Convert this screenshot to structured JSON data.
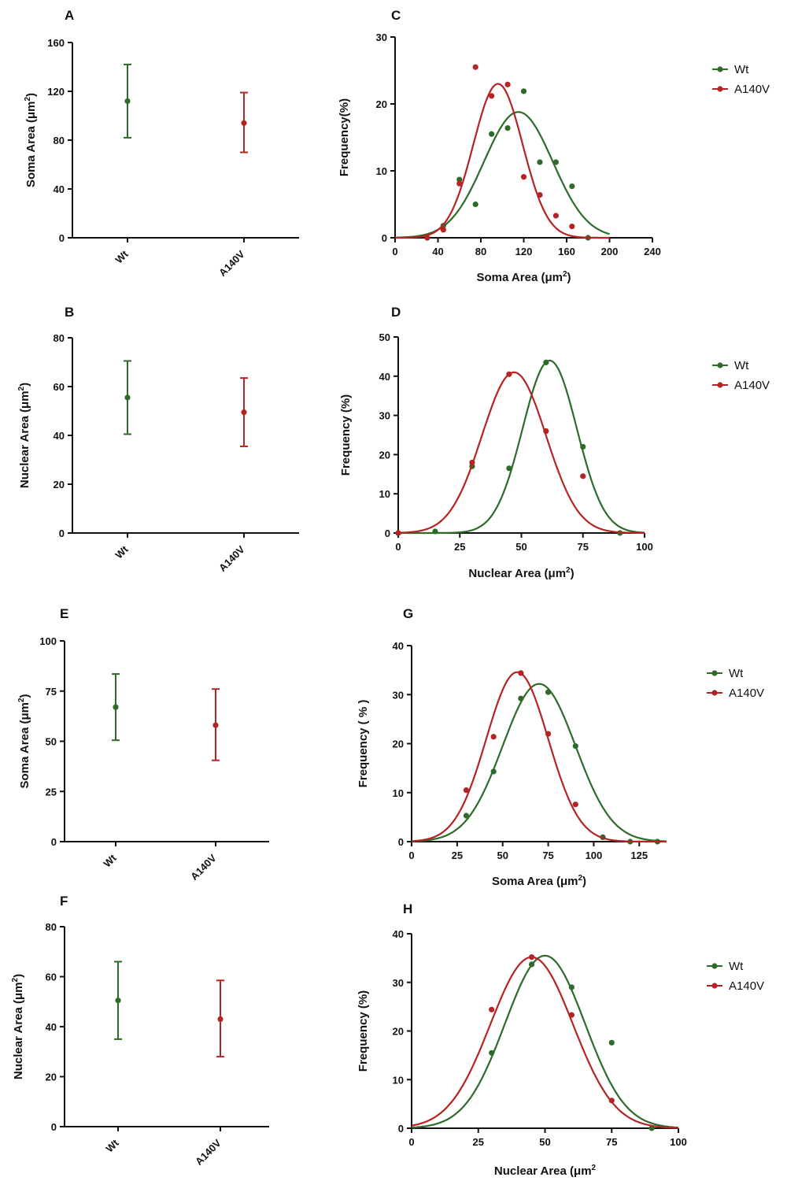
{
  "colors": {
    "wt": "#2e6b2a",
    "a140v": "#b52424",
    "axis": "#111111"
  },
  "chart_data": [
    {
      "id": "A",
      "type": "scatter",
      "panel_label": "A",
      "ylabel": "Soma Area (μm",
      "ylabel_sup": "2",
      "ylabel_tail": ")",
      "ylim": [
        0,
        160
      ],
      "yticks": [
        0,
        40,
        80,
        120,
        160
      ],
      "categories": [
        "Wt",
        "A140V"
      ],
      "series": [
        {
          "name": "Wt",
          "mean": 112,
          "low": 82,
          "high": 142,
          "color_key": "wt"
        },
        {
          "name": "A140V",
          "mean": 94,
          "low": 70,
          "high": 119,
          "color_key": "a140v"
        }
      ]
    },
    {
      "id": "B",
      "type": "scatter",
      "panel_label": "B",
      "ylabel": "Nuclear Area (μm",
      "ylabel_sup": "2",
      "ylabel_tail": ")",
      "ylim": [
        0,
        80
      ],
      "yticks": [
        0,
        20,
        40,
        60,
        80
      ],
      "categories": [
        "Wt",
        "A140V"
      ],
      "series": [
        {
          "name": "Wt",
          "mean": 55.5,
          "low": 40.5,
          "high": 70.5,
          "color_key": "wt"
        },
        {
          "name": "A140V",
          "mean": 49.5,
          "low": 35.5,
          "high": 63.5,
          "color_key": "a140v"
        }
      ]
    },
    {
      "id": "C",
      "type": "line",
      "panel_label": "C",
      "ylabel": "Frequency(%)",
      "xlabel": "Soma Area (μm",
      "xlabel_sup": "2",
      "xlabel_tail": ")",
      "xlim": [
        0,
        240
      ],
      "xticks": [
        0,
        40,
        80,
        120,
        160,
        200,
        240
      ],
      "ylim": [
        0,
        30
      ],
      "yticks": [
        0,
        10,
        20,
        30
      ],
      "legend": [
        "Wt",
        "A140V"
      ],
      "legend_position": "top-right",
      "series": [
        {
          "name": "Wt",
          "color_key": "wt",
          "points": [
            [
              30,
              0
            ],
            [
              45,
              1.8
            ],
            [
              60,
              8.7
            ],
            [
              75,
              5
            ],
            [
              90,
              15.5
            ],
            [
              105,
              16.4
            ],
            [
              120,
              21.9
            ],
            [
              135,
              11.3
            ],
            [
              150,
              11.3
            ],
            [
              165,
              7.7
            ],
            [
              180,
              0
            ]
          ],
          "curve": {
            "amp": 18.8,
            "mu": 115,
            "sigma": 32,
            "xmin": 0,
            "xmax": 200
          }
        },
        {
          "name": "A140V",
          "color_key": "a140v",
          "points": [
            [
              30,
              0
            ],
            [
              45,
              1.2
            ],
            [
              60,
              8.1
            ],
            [
              75,
              25.5
            ],
            [
              90,
              21.2
            ],
            [
              105,
              22.9
            ],
            [
              120,
              9.1
            ],
            [
              135,
              6.4
            ],
            [
              150,
              3.3
            ],
            [
              165,
              1.7
            ]
          ],
          "curve": {
            "amp": 23,
            "mu": 96,
            "sigma": 23,
            "xmin": 0,
            "xmax": 200
          }
        }
      ]
    },
    {
      "id": "D",
      "type": "line",
      "panel_label": "D",
      "ylabel": "Frequency (%)",
      "xlabel": "Nuclear Area (μm",
      "xlabel_sup": "2",
      "xlabel_tail": ")",
      "xlim": [
        0,
        100
      ],
      "xticks": [
        0,
        25,
        50,
        75,
        100
      ],
      "ylim": [
        0,
        50
      ],
      "yticks": [
        0,
        10,
        20,
        30,
        40,
        50
      ],
      "legend": [
        "Wt",
        "A140V"
      ],
      "legend_position": "top-right",
      "series": [
        {
          "name": "Wt",
          "color_key": "wt",
          "points": [
            [
              0,
              0
            ],
            [
              15,
              0.4
            ],
            [
              30,
              17
            ],
            [
              45,
              16.5
            ],
            [
              60,
              43.5
            ],
            [
              75,
              22
            ],
            [
              90,
              0
            ]
          ],
          "curve": {
            "amp": 44,
            "mu": 61.5,
            "sigma": 11,
            "xmin": 0,
            "xmax": 100
          }
        },
        {
          "name": "A140V",
          "color_key": "a140v",
          "points": [
            [
              0,
              0
            ],
            [
              30,
              18
            ],
            [
              45,
              40.5
            ],
            [
              60,
              26
            ],
            [
              75,
              14.5
            ]
          ],
          "curve": {
            "amp": 41,
            "mu": 47,
            "sigma": 13,
            "xmin": 0,
            "xmax": 100
          }
        }
      ]
    },
    {
      "id": "E",
      "type": "scatter",
      "panel_label": "E",
      "ylabel": "Soma Area (μm",
      "ylabel_sup": "2",
      "ylabel_tail": ")",
      "ylim": [
        0,
        100
      ],
      "yticks": [
        0,
        25,
        50,
        75,
        100
      ],
      "categories": [
        "Wt",
        "A140V"
      ],
      "series": [
        {
          "name": "Wt",
          "mean": 67,
          "low": 50.5,
          "high": 83.5,
          "color_key": "wt"
        },
        {
          "name": "A140V",
          "mean": 58,
          "low": 40.5,
          "high": 76,
          "color_key": "a140v"
        }
      ]
    },
    {
      "id": "F",
      "type": "scatter",
      "panel_label": "F",
      "ylabel": "Nuclear Area (μm",
      "ylabel_sup": "2",
      "ylabel_tail": ")",
      "ylim": [
        0,
        80
      ],
      "yticks": [
        0,
        20,
        40,
        60,
        80
      ],
      "categories": [
        "Wt",
        "A140V"
      ],
      "series": [
        {
          "name": "Wt",
          "mean": 50.5,
          "low": 35,
          "high": 66,
          "color_key": "wt"
        },
        {
          "name": "A140V",
          "mean": 43,
          "low": 28,
          "high": 58.5,
          "color_key": "a140v"
        }
      ]
    },
    {
      "id": "G",
      "type": "line",
      "panel_label": "G",
      "ylabel": "Frequency ( % )",
      "xlabel": "Soma Area (μm",
      "xlabel_sup": "2",
      "xlabel_tail": ")",
      "xlim": [
        0,
        140
      ],
      "xticks": [
        0,
        25,
        50,
        75,
        100,
        125
      ],
      "ylim": [
        0,
        40
      ],
      "yticks": [
        0,
        10,
        20,
        30,
        40
      ],
      "legend": [
        "Wt",
        "A140V"
      ],
      "legend_position": "top-right",
      "series": [
        {
          "name": "Wt",
          "color_key": "wt",
          "points": [
            [
              30,
              5.3
            ],
            [
              45,
              14.3
            ],
            [
              60,
              29.2
            ],
            [
              75,
              30.5
            ],
            [
              90,
              19.5
            ],
            [
              105,
              0.9
            ],
            [
              120,
              0
            ],
            [
              135,
              0
            ]
          ],
          "curve": {
            "amp": 32.2,
            "mu": 70,
            "sigma": 20,
            "xmin": 0,
            "xmax": 140
          }
        },
        {
          "name": "A140V",
          "color_key": "a140v",
          "points": [
            [
              30,
              10.5
            ],
            [
              45,
              21.4
            ],
            [
              60,
              34.4
            ],
            [
              75,
              22
            ],
            [
              90,
              7.6
            ]
          ],
          "curve": {
            "amp": 34.6,
            "mu": 58,
            "sigma": 17,
            "xmin": 0,
            "xmax": 140
          }
        }
      ]
    },
    {
      "id": "H",
      "type": "line",
      "panel_label": "H",
      "ylabel": "Frequency (%)",
      "xlabel": "Nuclear Area (μm",
      "xlabel_sup": "2",
      "xlabel_tail": "",
      "xlim": [
        0,
        100
      ],
      "xticks": [
        0,
        25,
        50,
        75,
        100
      ],
      "ylim": [
        0,
        40
      ],
      "yticks": [
        0,
        10,
        20,
        30,
        40
      ],
      "legend": [
        "Wt",
        "A140V"
      ],
      "legend_position": "top-right",
      "series": [
        {
          "name": "Wt",
          "color_key": "wt",
          "points": [
            [
              30,
              15.5
            ],
            [
              45,
              33.7
            ],
            [
              60,
              29
            ],
            [
              75,
              17.6
            ],
            [
              90,
              0
            ]
          ],
          "curve": {
            "amp": 35.5,
            "mu": 50,
            "sigma": 15,
            "xmin": 0,
            "xmax": 100
          }
        },
        {
          "name": "A140V",
          "color_key": "a140v",
          "points": [
            [
              30,
              24.4
            ],
            [
              45,
              35.2
            ],
            [
              60,
              23.3
            ],
            [
              75,
              5.7
            ]
          ],
          "curve": {
            "amp": 35.2,
            "mu": 45,
            "sigma": 15.5,
            "xmin": 0,
            "xmax": 100
          }
        }
      ]
    }
  ]
}
